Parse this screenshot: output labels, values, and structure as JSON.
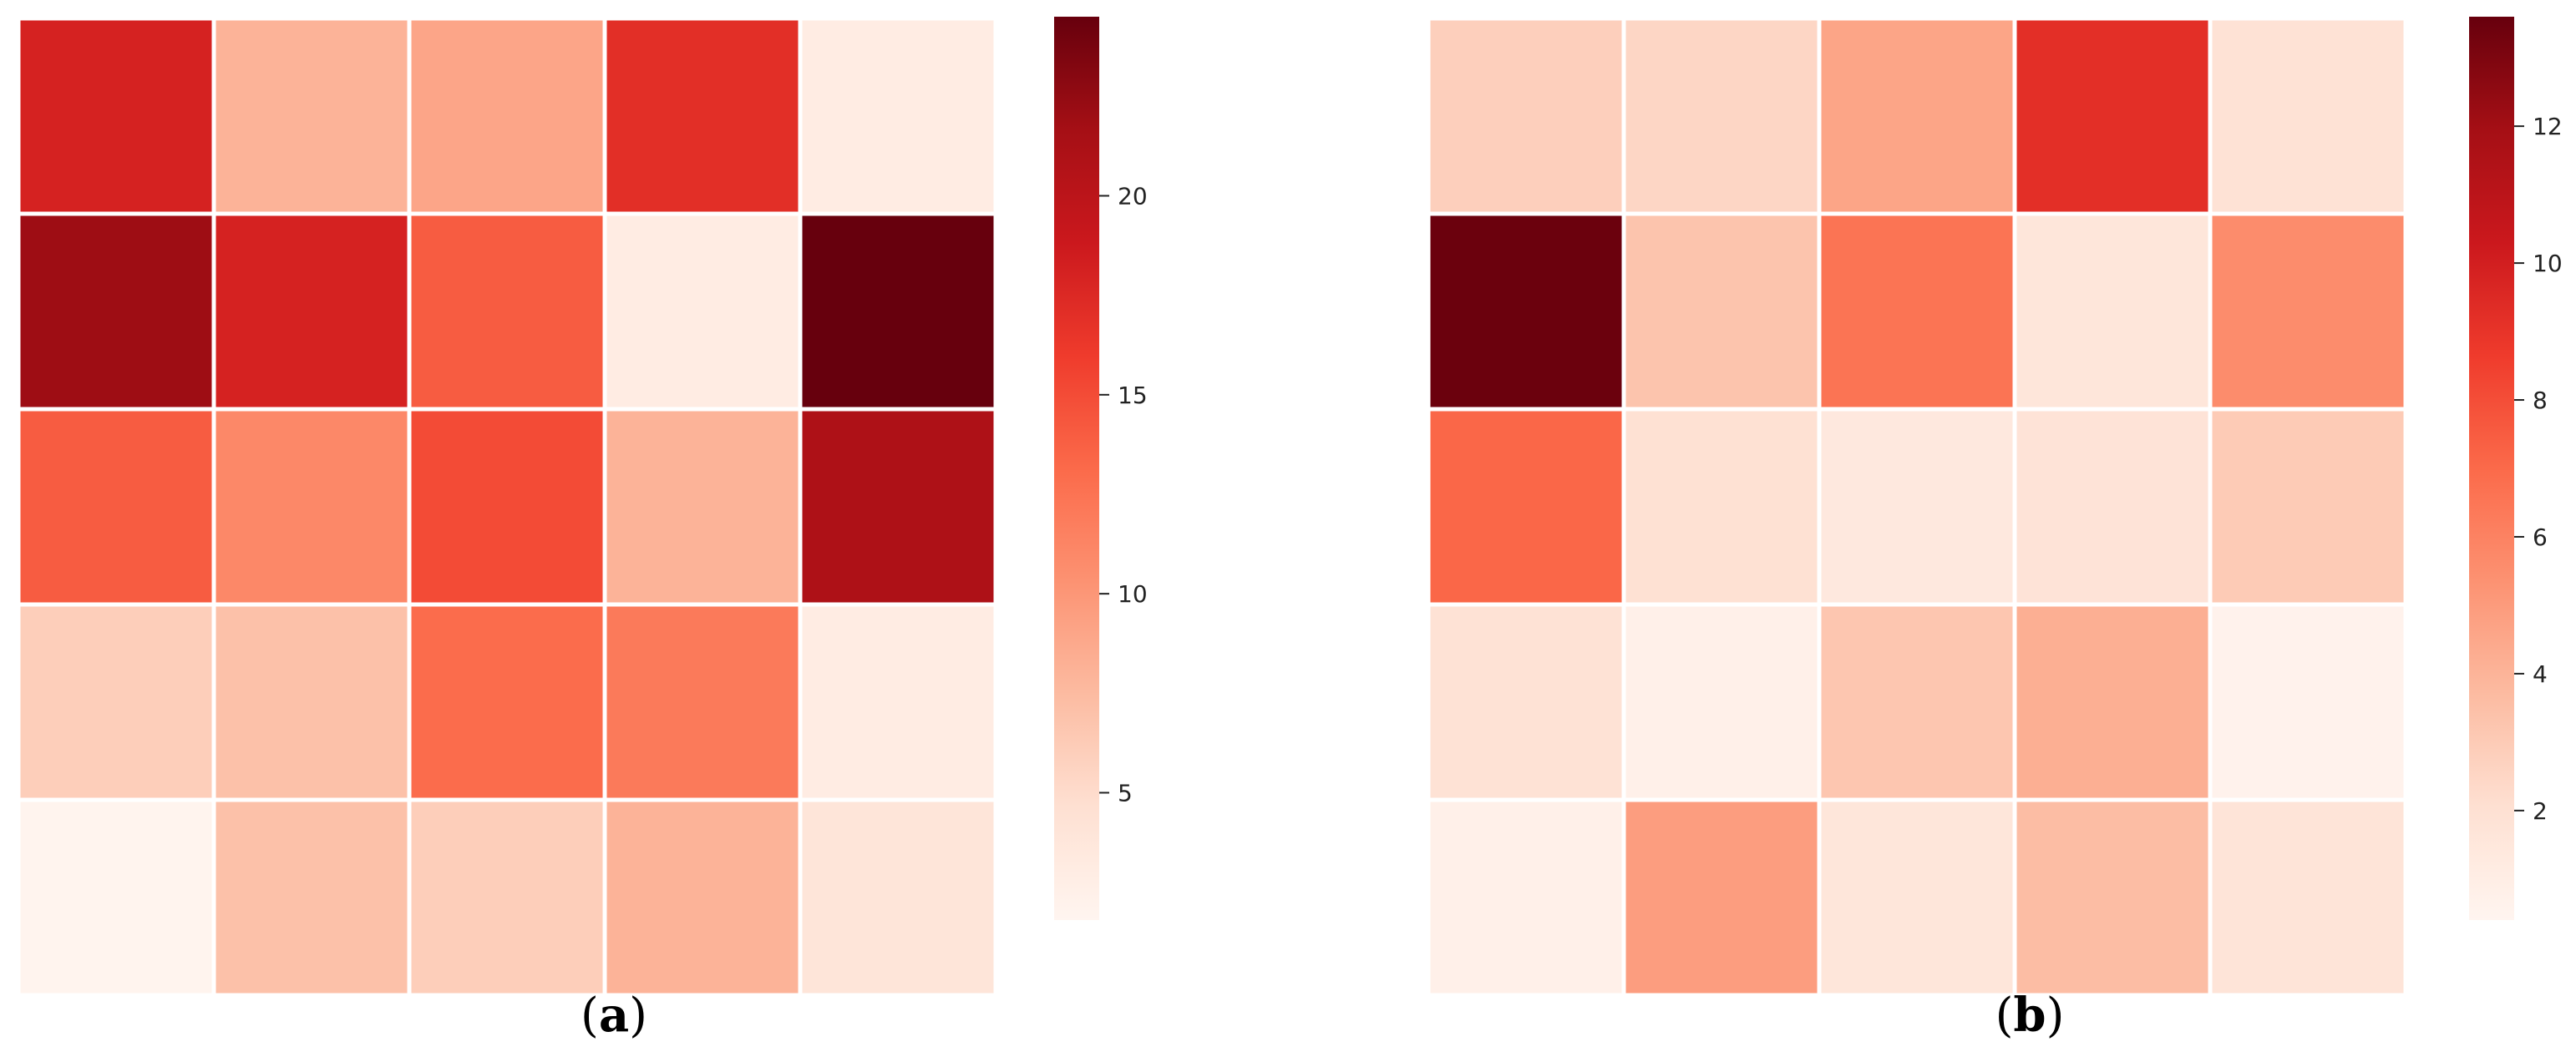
{
  "chart_data": [
    {
      "type": "heatmap",
      "panel_label_open": "(",
      "panel_label_letter": "a",
      "panel_label_close": ")",
      "colormap": "Reds",
      "colors": {
        "low": "#fff5f0",
        "high": "#67000d",
        "cell_border": "#ffffff"
      },
      "rows": 5,
      "cols": 5,
      "values": [
        [
          18,
          8,
          9,
          17,
          3
        ],
        [
          22,
          18,
          14,
          3,
          24.5
        ],
        [
          14,
          11,
          15,
          8,
          21
        ],
        [
          6,
          7,
          13,
          12,
          3
        ],
        [
          2,
          7,
          6,
          8,
          4
        ]
      ],
      "colorbar": {
        "range": [
          1.8,
          24.5
        ],
        "ticks": [
          5,
          10,
          15,
          20
        ],
        "tick_labels": [
          "5",
          "10",
          "15",
          "20"
        ]
      }
    },
    {
      "type": "heatmap",
      "panel_label_open": "(",
      "panel_label_letter": "b",
      "panel_label_close": ")",
      "colormap": "Reds",
      "colors": {
        "low": "#fff5f0",
        "high": "#67000d",
        "cell_border": "#ffffff"
      },
      "rows": 5,
      "cols": 5,
      "values": [
        [
          2.8,
          2.5,
          4.6,
          9.2,
          1.9
        ],
        [
          13.5,
          3.3,
          6.6,
          1.6,
          5.6
        ],
        [
          7.1,
          2.0,
          1.4,
          1.8,
          3.0
        ],
        [
          1.9,
          0.8,
          3.2,
          4.2,
          0.6
        ],
        [
          0.8,
          4.9,
          1.6,
          3.6,
          1.7
        ]
      ],
      "colorbar": {
        "range": [
          0.4,
          13.6
        ],
        "ticks": [
          2,
          4,
          6,
          8,
          10,
          12
        ],
        "tick_labels": [
          "2",
          "4",
          "6",
          "8",
          "10",
          "12"
        ]
      }
    }
  ]
}
